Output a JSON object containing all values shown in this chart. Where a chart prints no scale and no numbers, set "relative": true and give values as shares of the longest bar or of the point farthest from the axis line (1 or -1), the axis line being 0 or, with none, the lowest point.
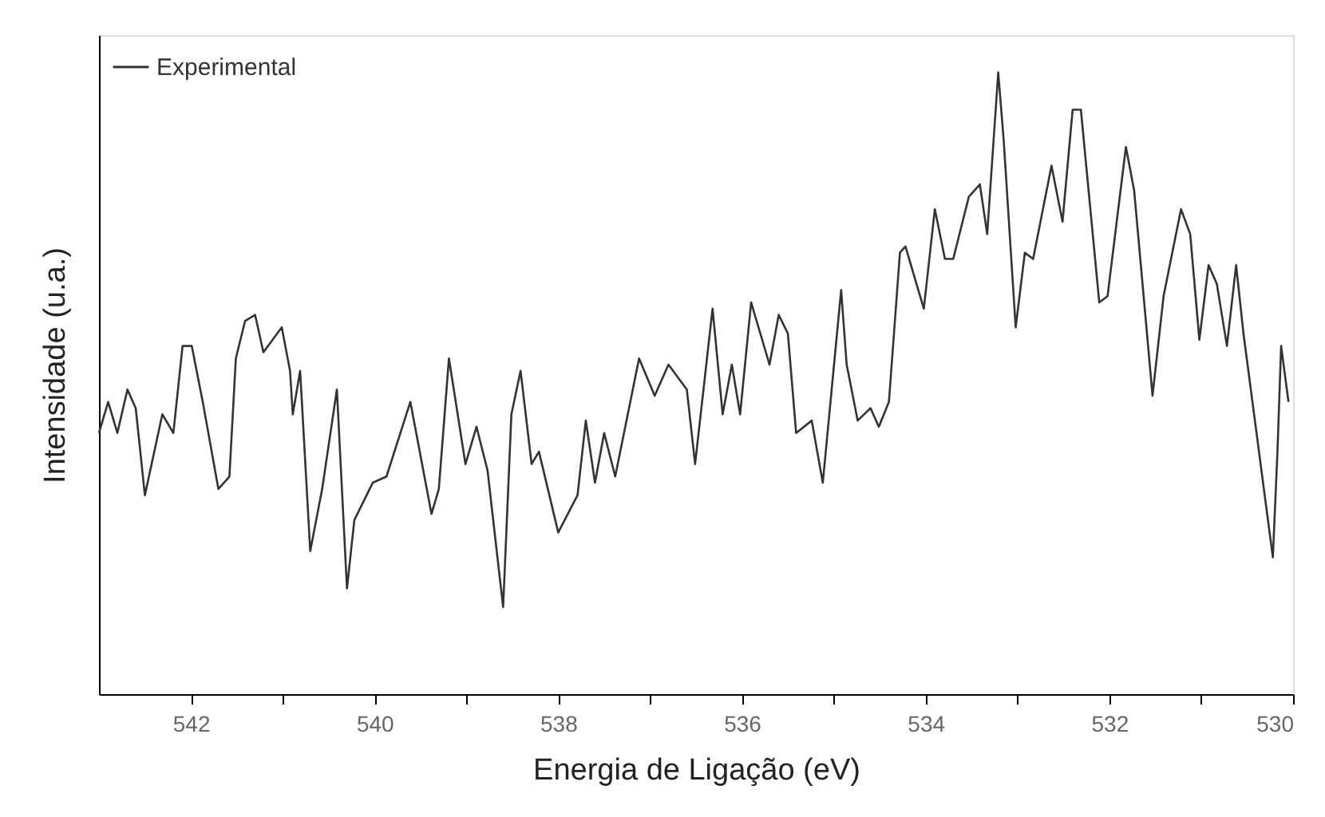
{
  "chart_data": {
    "type": "line",
    "xlabel": "Energia de Ligação (eV)",
    "ylabel": "Intensidade (u.a.)",
    "relative": true,
    "legend": "top left",
    "line_style": "solid",
    "xlim": [
      543,
      530
    ],
    "xticks": [
      542,
      {
        "value": 541,
        "label": null
      },
      540,
      {
        "value": 539,
        "label": null
      },
      538,
      {
        "value": 537,
        "label": null
      },
      536,
      {
        "value": 535,
        "label": null
      },
      534,
      {
        "value": 533,
        "label": null
      },
      532,
      {
        "value": 531,
        "label": null
      },
      530
    ],
    "x": [
      543.0,
      542.9,
      542.8,
      542.69,
      542.6,
      542.5,
      542.31,
      542.19,
      542.09,
      541.99,
      541.87,
      541.7,
      541.58,
      541.51,
      541.41,
      541.3,
      541.21,
      541.01,
      540.92,
      540.89,
      540.81,
      540.7,
      540.57,
      540.41,
      540.3,
      540.22,
      540.02,
      539.87,
      539.61,
      539.38,
      539.3,
      539.19,
      539.01,
      538.89,
      538.77,
      538.6,
      538.51,
      538.41,
      538.29,
      538.21,
      538.0,
      537.79,
      537.7,
      537.6,
      537.5,
      537.38,
      537.12,
      536.95,
      536.8,
      536.6,
      536.51,
      536.32,
      536.21,
      536.11,
      536.02,
      535.9,
      535.7,
      535.6,
      535.5,
      535.41,
      535.24,
      535.12,
      534.92,
      534.86,
      534.74,
      534.6,
      534.51,
      534.4,
      534.28,
      534.22,
      534.02,
      533.9,
      533.79,
      533.7,
      533.53,
      533.41,
      533.33,
      533.21,
      533.15,
      533.02,
      532.92,
      532.83,
      532.63,
      532.51,
      532.4,
      532.31,
      532.11,
      532.02,
      531.82,
      531.73,
      531.53,
      531.41,
      531.22,
      531.12,
      531.02,
      530.92,
      530.83,
      530.72,
      530.62,
      530.54,
      530.22,
      530.17,
      530.13,
      530.05
    ],
    "series": [
      {
        "name": "Experimental",
        "color": "#333333",
        "values": [
          0.42,
          0.47,
          0.42,
          0.49,
          0.46,
          0.32,
          0.45,
          0.42,
          0.56,
          0.56,
          0.47,
          0.33,
          0.35,
          0.54,
          0.6,
          0.61,
          0.55,
          0.59,
          0.52,
          0.45,
          0.52,
          0.23,
          0.33,
          0.49,
          0.17,
          0.28,
          0.34,
          0.35,
          0.47,
          0.29,
          0.33,
          0.54,
          0.37,
          0.43,
          0.36,
          0.14,
          0.45,
          0.52,
          0.37,
          0.39,
          0.26,
          0.32,
          0.44,
          0.34,
          0.42,
          0.35,
          0.54,
          0.48,
          0.53,
          0.49,
          0.37,
          0.62,
          0.45,
          0.53,
          0.45,
          0.63,
          0.53,
          0.61,
          0.58,
          0.42,
          0.44,
          0.34,
          0.65,
          0.53,
          0.44,
          0.46,
          0.43,
          0.47,
          0.71,
          0.72,
          0.62,
          0.78,
          0.7,
          0.7,
          0.8,
          0.82,
          0.74,
          1.0,
          0.89,
          0.59,
          0.71,
          0.7,
          0.85,
          0.76,
          0.94,
          0.94,
          0.63,
          0.64,
          0.88,
          0.81,
          0.48,
          0.64,
          0.78,
          0.74,
          0.57,
          0.69,
          0.66,
          0.56,
          0.69,
          0.58,
          0.22,
          0.39,
          0.56,
          0.47
        ]
      }
    ]
  }
}
